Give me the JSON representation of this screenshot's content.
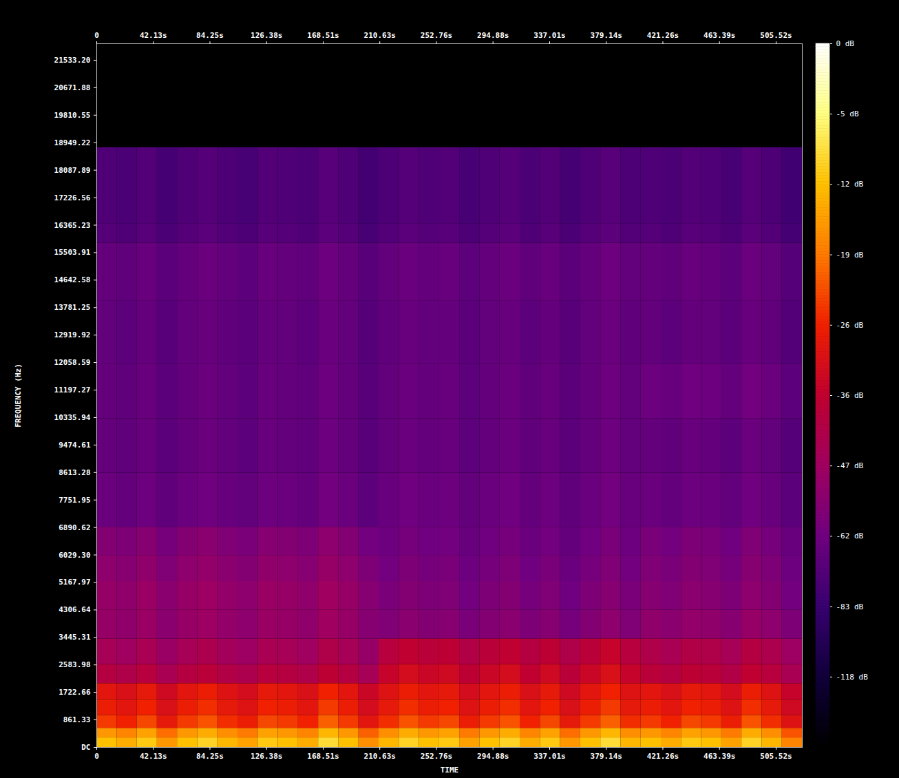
{
  "chart_data": {
    "type": "heatmap",
    "xlabel": "TIME",
    "ylabel": "FREQUENCY (Hz)",
    "xlim": [
      0,
      525
    ],
    "ylim": [
      0,
      22050
    ],
    "xticks": [
      0,
      {
        "value": 42.13,
        "label": "42.13s"
      },
      {
        "value": 84.25,
        "label": "84.25s"
      },
      {
        "value": 126.38,
        "label": "126.38s"
      },
      {
        "value": 168.51,
        "label": "168.51s"
      },
      {
        "value": 210.63,
        "label": "210.63s"
      },
      {
        "value": 252.76,
        "label": "252.76s"
      },
      {
        "value": 294.88,
        "label": "294.88s"
      },
      {
        "value": 337.01,
        "label": "337.01s"
      },
      {
        "value": 379.14,
        "label": "379.14s"
      },
      {
        "value": 421.26,
        "label": "421.26s"
      },
      {
        "value": 463.39,
        "label": "463.39s"
      },
      {
        "value": 505.52,
        "label": "505.52s"
      }
    ],
    "yticks": [
      {
        "value": 0,
        "label": "DC"
      },
      861.33,
      1722.66,
      2583.98,
      3445.31,
      4306.64,
      5167.97,
      {
        "value": 6029.3,
        "label": "6029.30"
      },
      6890.62,
      7751.95,
      8613.28,
      9474.61,
      10335.94,
      11197.27,
      12058.59,
      12919.92,
      13781.25,
      14642.58,
      15503.91,
      16365.23,
      17226.56,
      18087.89,
      18949.22,
      19810.55,
      20671.88,
      {
        "value": 21533.2,
        "label": "21533.20"
      }
    ],
    "time_bins": [
      0,
      15,
      30,
      45,
      60,
      75,
      90,
      105,
      120,
      135,
      150,
      165,
      180,
      195,
      210,
      225,
      240,
      255,
      270,
      285,
      300,
      315,
      330,
      345,
      360,
      375,
      390,
      405,
      420,
      435,
      450,
      465,
      480,
      495,
      510,
      525
    ],
    "freq_bins": [
      0,
      300,
      600,
      1000,
      1500,
      2000,
      2600,
      3400,
      4300,
      5200,
      6000,
      6900,
      8600,
      10300,
      12000,
      14000,
      15800,
      16400,
      18800,
      22050
    ],
    "values": [
      [
        -12,
        -14,
        -11,
        -16,
        -12,
        -10,
        -13,
        -15,
        -11,
        -12,
        -14,
        -9,
        -12,
        -17,
        -13,
        -10,
        -12,
        -11,
        -15,
        -12,
        -10,
        -14,
        -11,
        -16,
        -12,
        -9,
        -13,
        -12,
        -14,
        -11,
        -12,
        -15,
        -10,
        -13,
        -18
      ],
      [
        -16,
        -18,
        -15,
        -20,
        -16,
        -14,
        -17,
        -19,
        -15,
        -16,
        -18,
        -13,
        -16,
        -21,
        -17,
        -14,
        -16,
        -15,
        -19,
        -16,
        -14,
        -18,
        -15,
        -20,
        -16,
        -13,
        -17,
        -16,
        -18,
        -15,
        -16,
        -19,
        -14,
        -17,
        -22
      ],
      [
        -24,
        -26,
        -23,
        -28,
        -24,
        -22,
        -25,
        -27,
        -23,
        -24,
        -26,
        -21,
        -24,
        -29,
        -25,
        -22,
        -24,
        -23,
        -27,
        -24,
        -22,
        -26,
        -23,
        -28,
        -24,
        -21,
        -25,
        -24,
        -26,
        -23,
        -24,
        -27,
        -22,
        -25,
        -30
      ],
      [
        -27,
        -29,
        -26,
        -31,
        -27,
        -25,
        -28,
        -30,
        -26,
        -27,
        -29,
        -24,
        -27,
        -32,
        -28,
        -25,
        -27,
        -26,
        -30,
        -27,
        -25,
        -29,
        -26,
        -31,
        -27,
        -24,
        -28,
        -27,
        -29,
        -26,
        -27,
        -30,
        -25,
        -28,
        -33
      ],
      [
        -29,
        -31,
        -28,
        -33,
        -29,
        -27,
        -30,
        -32,
        -28,
        -29,
        -31,
        -26,
        -29,
        -34,
        -30,
        -27,
        -29,
        -28,
        -32,
        -29,
        -27,
        -31,
        -28,
        -33,
        -29,
        -26,
        -30,
        -29,
        -31,
        -28,
        -29,
        -32,
        -27,
        -30,
        -35
      ],
      [
        -40,
        -42,
        -39,
        -44,
        -40,
        -38,
        -41,
        -43,
        -39,
        -40,
        -42,
        -37,
        -40,
        -45,
        -35,
        -32,
        -34,
        -33,
        -37,
        -34,
        -32,
        -36,
        -33,
        -38,
        -34,
        -31,
        -35,
        -38,
        -40,
        -37,
        -38,
        -41,
        -36,
        -39,
        -44
      ],
      [
        -45,
        -47,
        -44,
        -49,
        -45,
        -43,
        -46,
        -48,
        -44,
        -45,
        -47,
        -42,
        -45,
        -50,
        -39,
        -36,
        -38,
        -37,
        -41,
        -38,
        -36,
        -40,
        -37,
        -42,
        -38,
        -35,
        -39,
        -42,
        -44,
        -41,
        -42,
        -45,
        -40,
        -43,
        -48
      ],
      [
        -50,
        -52,
        -49,
        -54,
        -50,
        -48,
        -51,
        -53,
        -49,
        -50,
        -52,
        -47,
        -50,
        -55,
        -57,
        -54,
        -56,
        -55,
        -59,
        -56,
        -54,
        -58,
        -55,
        -60,
        -56,
        -53,
        -57,
        -52,
        -54,
        -51,
        -52,
        -55,
        -50,
        -53,
        -58
      ],
      [
        -50,
        -52,
        -49,
        -54,
        -50,
        -48,
        -51,
        -53,
        -49,
        -50,
        -52,
        -47,
        -50,
        -55,
        -59,
        -56,
        -58,
        -57,
        -61,
        -58,
        -56,
        -60,
        -57,
        -62,
        -58,
        -55,
        -59,
        -55,
        -57,
        -54,
        -55,
        -58,
        -53,
        -56,
        -61
      ],
      [
        -53,
        -55,
        -52,
        -57,
        -53,
        -51,
        -54,
        -56,
        -52,
        -53,
        -55,
        -50,
        -53,
        -58,
        -61,
        -58,
        -60,
        -59,
        -63,
        -60,
        -58,
        -62,
        -59,
        -64,
        -60,
        -57,
        -61,
        -57,
        -59,
        -56,
        -57,
        -60,
        -55,
        -58,
        -63
      ],
      [
        -56,
        -58,
        -55,
        -60,
        -56,
        -54,
        -57,
        -59,
        -55,
        -56,
        -58,
        -53,
        -56,
        -61,
        -63,
        -60,
        -62,
        -61,
        -65,
        -62,
        -60,
        -64,
        -61,
        -66,
        -62,
        -59,
        -63,
        -59,
        -61,
        -58,
        -59,
        -62,
        -57,
        -60,
        -65
      ],
      [
        -64,
        -66,
        -63,
        -68,
        -64,
        -62,
        -65,
        -67,
        -63,
        -64,
        -66,
        -61,
        -64,
        -69,
        -65,
        -62,
        -64,
        -63,
        -67,
        -64,
        -62,
        -66,
        -63,
        -68,
        -64,
        -61,
        -65,
        -64,
        -66,
        -63,
        -64,
        -67,
        -62,
        -65,
        -70
      ],
      [
        -66,
        -68,
        -65,
        -70,
        -66,
        -64,
        -67,
        -69,
        -65,
        -66,
        -68,
        -63,
        -66,
        -71,
        -67,
        -64,
        -66,
        -65,
        -69,
        -66,
        -64,
        -68,
        -65,
        -70,
        -66,
        -63,
        -67,
        -66,
        -68,
        -65,
        -66,
        -69,
        -64,
        -67,
        -72
      ],
      [
        -66,
        -68,
        -65,
        -70,
        -66,
        -64,
        -67,
        -69,
        -65,
        -66,
        -68,
        -63,
        -66,
        -71,
        -67,
        -64,
        -66,
        -65,
        -69,
        -66,
        -64,
        -68,
        -65,
        -70,
        -66,
        -63,
        -67,
        -63,
        -65,
        -62,
        -63,
        -66,
        -61,
        -64,
        -69
      ],
      [
        -67,
        -69,
        -66,
        -71,
        -67,
        -65,
        -68,
        -70,
        -66,
        -67,
        -69,
        -64,
        -67,
        -72,
        -68,
        -65,
        -67,
        -66,
        -70,
        -67,
        -65,
        -69,
        -66,
        -71,
        -67,
        -64,
        -68,
        -67,
        -69,
        -66,
        -67,
        -70,
        -65,
        -68,
        -73
      ],
      [
        -66,
        -68,
        -65,
        -70,
        -66,
        -64,
        -67,
        -69,
        -65,
        -66,
        -68,
        -63,
        -66,
        -71,
        -67,
        -64,
        -66,
        -65,
        -69,
        -66,
        -64,
        -68,
        -65,
        -70,
        -66,
        -63,
        -67,
        -66,
        -68,
        -65,
        -66,
        -69,
        -64,
        -67,
        -72
      ],
      [
        -72,
        -74,
        -71,
        -76,
        -72,
        -70,
        -73,
        -75,
        -71,
        -72,
        -74,
        -69,
        -72,
        -77,
        -73,
        -70,
        -72,
        -71,
        -75,
        -72,
        -70,
        -74,
        -71,
        -76,
        -72,
        -69,
        -73,
        -72,
        -74,
        -71,
        -72,
        -75,
        -70,
        -73,
        -78
      ],
      [
        -74,
        -76,
        -73,
        -78,
        -74,
        -72,
        -75,
        -77,
        -73,
        -74,
        -76,
        -71,
        -74,
        -79,
        -75,
        -72,
        -74,
        -73,
        -77,
        -74,
        -72,
        -76,
        -73,
        -78,
        -74,
        -71,
        -75,
        -74,
        -76,
        -73,
        -74,
        -77,
        -72,
        -75,
        -80
      ],
      [
        -160,
        -160,
        -160,
        -160,
        -160,
        -160,
        -160,
        -160,
        -160,
        -160,
        -160,
        -160,
        -160,
        -160,
        -160,
        -160,
        -160,
        -160,
        -160,
        -160,
        -160,
        -160,
        -160,
        -160,
        -160,
        -160,
        -160,
        -160,
        -160,
        -160,
        -160,
        -160,
        -160,
        -160,
        -160
      ]
    ],
    "colorbar": {
      "range": [
        -160,
        0
      ],
      "ticks": [
        {
          "value": -118,
          "label": "-118 dB"
        },
        {
          "value": -83,
          "label": "-83 dB"
        },
        {
          "value": -62,
          "label": "-62 dB"
        },
        {
          "value": -47,
          "label": "-47 dB"
        },
        {
          "value": -36,
          "label": "-36 dB"
        },
        {
          "value": -26,
          "label": "-26 dB"
        },
        {
          "value": -19,
          "label": "-19 dB"
        },
        {
          "value": -12,
          "label": "-12 dB"
        },
        {
          "value": -5,
          "label": "-5 dB"
        },
        {
          "value": 0,
          "label": "0 dB"
        }
      ],
      "colors": [
        "#000000",
        "#10003a",
        "#380070",
        "#700080",
        "#a00060",
        "#c00030",
        "#f02000",
        "#ff7a00",
        "#ffc000",
        "#ffff80",
        "#ffffff"
      ]
    }
  }
}
